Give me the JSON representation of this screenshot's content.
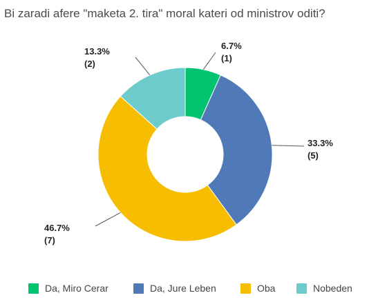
{
  "title": "Bi zaradi afere \"maketa 2. tira\" moral kateri od ministrov oditi?",
  "chart_data": {
    "type": "pie",
    "donut": true,
    "title": "Bi zaradi afere \"maketa 2. tira\" moral kateri od ministrov oditi?",
    "legend_position": "bottom",
    "slices": [
      {
        "label": "Da, Miro Cerar",
        "value": 1,
        "percent": "6.7%",
        "count": "(1)",
        "color": "#00c46f"
      },
      {
        "label": "Da, Jure Leben",
        "value": 5,
        "percent": "33.3%",
        "count": "(5)",
        "color": "#4f7ab7"
      },
      {
        "label": "Oba",
        "value": 7,
        "percent": "46.7%",
        "count": "(7)",
        "color": "#f7bd00"
      },
      {
        "label": "Nobeden",
        "value": 2,
        "percent": "13.3%",
        "count": "(2)",
        "color": "#6dcbcb"
      }
    ]
  }
}
